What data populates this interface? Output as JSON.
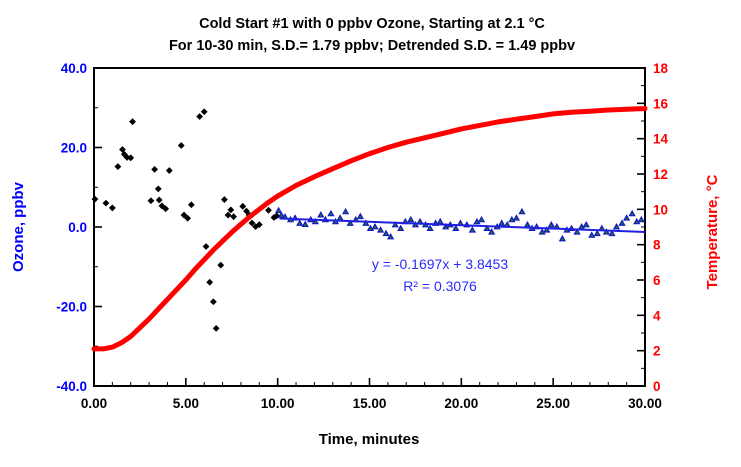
{
  "title": {
    "line1": "Cold Start #1 with 0 ppbv Ozone, Starting at 2.1 °C",
    "line2": "For 10-30 min, S.D.= 1.79 ppbv; Detrended  S.D. = 1.49 ppbv"
  },
  "chart_data": {
    "type": "scatter+line",
    "xlabel": "Time, minutes",
    "ylabel_left": "Ozone, ppbv",
    "ylabel_right": "Temperature, °C",
    "x_axis": {
      "min": 0,
      "max": 30,
      "minor_step": 1,
      "major_ticks": [
        0,
        5,
        10,
        15,
        20,
        25,
        30
      ],
      "tick_labels": [
        "0.00",
        "5.00",
        "10.00",
        "15.00",
        "20.00",
        "25.00",
        "30.00"
      ],
      "color": "#000000"
    },
    "y_left": {
      "min": -40,
      "max": 40,
      "minor_step": 10,
      "major_ticks": [
        40,
        20,
        0,
        -20,
        -40
      ],
      "tick_labels": [
        "40.0",
        "20.0",
        "0.0",
        "-20.0",
        "-40.0"
      ],
      "color": "#0000FF"
    },
    "y_right": {
      "min": 0,
      "max": 18,
      "minor_step": 1,
      "major_ticks": [
        18,
        16,
        14,
        12,
        10,
        8,
        6,
        4,
        2,
        0
      ],
      "tick_labels": [
        "18",
        "16",
        "14",
        "12",
        "10",
        "8",
        "6",
        "4",
        "2",
        "0"
      ],
      "color": "#FF0000"
    },
    "annotation": {
      "line1": "y = -0.1697x + 3.8453",
      "line2": "R² = 0.3076",
      "color": "#2B2BFF"
    },
    "series": [
      {
        "name": "ozone-initial",
        "marker": "diamond",
        "color": "#000000",
        "points": [
          [
            0.05,
            7.0
          ],
          [
            0.65,
            6.0
          ],
          [
            1.0,
            4.8
          ],
          [
            1.3,
            15.2
          ],
          [
            1.55,
            19.5
          ],
          [
            1.65,
            18.3
          ],
          [
            1.8,
            17.5
          ],
          [
            2.0,
            17.4
          ],
          [
            2.1,
            26.5
          ],
          [
            3.1,
            6.6
          ],
          [
            3.3,
            14.5
          ],
          [
            3.5,
            9.6
          ],
          [
            3.55,
            6.8
          ],
          [
            3.7,
            5.3
          ],
          [
            3.9,
            4.6
          ],
          [
            4.1,
            14.2
          ],
          [
            4.75,
            20.5
          ],
          [
            4.9,
            3.0
          ],
          [
            5.1,
            2.2
          ],
          [
            5.3,
            5.6
          ],
          [
            5.75,
            27.8
          ],
          [
            6.0,
            29.0
          ],
          [
            6.1,
            -4.9
          ],
          [
            6.3,
            -13.9
          ],
          [
            6.5,
            -18.8
          ],
          [
            6.65,
            -25.5
          ],
          [
            6.9,
            -9.6
          ],
          [
            7.1,
            6.9
          ],
          [
            7.3,
            3.0
          ],
          [
            7.45,
            4.3
          ],
          [
            7.6,
            2.6
          ],
          [
            8.1,
            5.2
          ],
          [
            8.3,
            4.0
          ],
          [
            8.45,
            3.0
          ],
          [
            8.6,
            1.0
          ],
          [
            8.8,
            0.1
          ],
          [
            9.0,
            0.6
          ],
          [
            9.5,
            4.2
          ],
          [
            9.8,
            2.4
          ],
          [
            9.95,
            2.8
          ]
        ]
      },
      {
        "name": "ozone-detrended",
        "marker": "triangle",
        "color": "#1414CC",
        "center_color": "#1E7A1E",
        "points": [
          [
            10.05,
            4.2
          ],
          [
            10.2,
            3.0
          ],
          [
            10.4,
            2.6
          ],
          [
            10.7,
            1.9
          ],
          [
            10.95,
            2.3
          ],
          [
            11.2,
            1.0
          ],
          [
            11.5,
            0.7
          ],
          [
            11.8,
            1.9
          ],
          [
            12.05,
            1.4
          ],
          [
            12.35,
            3.1
          ],
          [
            12.6,
            1.9
          ],
          [
            12.9,
            3.4
          ],
          [
            13.15,
            1.4
          ],
          [
            13.4,
            2.3
          ],
          [
            13.7,
            3.9
          ],
          [
            13.95,
            1.0
          ],
          [
            14.25,
            1.9
          ],
          [
            14.5,
            2.7
          ],
          [
            14.8,
            1.0
          ],
          [
            15.05,
            -0.3
          ],
          [
            15.3,
            0.1
          ],
          [
            15.6,
            -0.7
          ],
          [
            15.9,
            -1.6
          ],
          [
            16.15,
            -2.4
          ],
          [
            16.4,
            0.6
          ],
          [
            16.7,
            -0.3
          ],
          [
            16.95,
            1.4
          ],
          [
            17.25,
            1.9
          ],
          [
            17.5,
            0.6
          ],
          [
            17.75,
            1.4
          ],
          [
            18.05,
            0.6
          ],
          [
            18.3,
            -0.3
          ],
          [
            18.6,
            1.0
          ],
          [
            18.85,
            1.4
          ],
          [
            19.15,
            0.1
          ],
          [
            19.4,
            0.6
          ],
          [
            19.7,
            -0.3
          ],
          [
            19.95,
            1.0
          ],
          [
            20.3,
            0.6
          ],
          [
            20.6,
            -0.7
          ],
          [
            20.85,
            1.4
          ],
          [
            21.1,
            1.9
          ],
          [
            21.4,
            -0.3
          ],
          [
            21.65,
            -1.2
          ],
          [
            21.95,
            0.1
          ],
          [
            22.2,
            1.0
          ],
          [
            22.5,
            0.6
          ],
          [
            22.75,
            1.9
          ],
          [
            23.0,
            2.3
          ],
          [
            23.3,
            3.9
          ],
          [
            23.6,
            0.6
          ],
          [
            23.85,
            -0.3
          ],
          [
            24.1,
            0.1
          ],
          [
            24.4,
            -1.2
          ],
          [
            24.65,
            -0.7
          ],
          [
            24.9,
            0.6
          ],
          [
            25.2,
            0.1
          ],
          [
            25.5,
            -2.9
          ],
          [
            25.75,
            -0.7
          ],
          [
            26.0,
            -0.3
          ],
          [
            26.3,
            -1.2
          ],
          [
            26.55,
            0.1
          ],
          [
            26.8,
            0.6
          ],
          [
            27.1,
            -2.0
          ],
          [
            27.4,
            -1.6
          ],
          [
            27.65,
            -0.3
          ],
          [
            27.9,
            -1.2
          ],
          [
            28.2,
            -1.6
          ],
          [
            28.45,
            0.1
          ],
          [
            28.75,
            1.0
          ],
          [
            29.0,
            2.3
          ],
          [
            29.3,
            3.4
          ],
          [
            29.55,
            1.4
          ],
          [
            29.8,
            1.9
          ]
        ]
      },
      {
        "name": "temperature-curve",
        "type": "line",
        "color": "#FF0000",
        "stroke_width": 5,
        "points": [
          [
            0,
            2.1
          ],
          [
            0.5,
            2.1
          ],
          [
            1,
            2.2
          ],
          [
            1.5,
            2.45
          ],
          [
            2,
            2.8
          ],
          [
            2.5,
            3.3
          ],
          [
            3,
            3.8
          ],
          [
            3.5,
            4.35
          ],
          [
            4,
            4.9
          ],
          [
            4.5,
            5.45
          ],
          [
            5,
            6.0
          ],
          [
            5.5,
            6.6
          ],
          [
            6,
            7.15
          ],
          [
            6.5,
            7.7
          ],
          [
            7,
            8.2
          ],
          [
            7.5,
            8.7
          ],
          [
            8,
            9.15
          ],
          [
            8.5,
            9.6
          ],
          [
            9,
            10.0
          ],
          [
            9.5,
            10.4
          ],
          [
            10,
            10.75
          ],
          [
            11,
            11.35
          ],
          [
            12,
            11.85
          ],
          [
            13,
            12.3
          ],
          [
            14,
            12.75
          ],
          [
            15,
            13.15
          ],
          [
            16,
            13.5
          ],
          [
            17,
            13.8
          ],
          [
            18,
            14.05
          ],
          [
            19,
            14.3
          ],
          [
            20,
            14.55
          ],
          [
            21,
            14.75
          ],
          [
            22,
            14.95
          ],
          [
            23,
            15.1
          ],
          [
            24,
            15.25
          ],
          [
            25,
            15.4
          ],
          [
            26,
            15.5
          ],
          [
            27,
            15.55
          ],
          [
            28,
            15.62
          ],
          [
            29,
            15.67
          ],
          [
            30,
            15.7
          ]
        ]
      },
      {
        "name": "ozone-trend-line",
        "type": "trend",
        "color": "#2020E0",
        "stroke_width": 2,
        "slope": -0.1697,
        "intercept": 3.8453,
        "x_range": [
          10.1,
          30
        ]
      }
    ]
  }
}
